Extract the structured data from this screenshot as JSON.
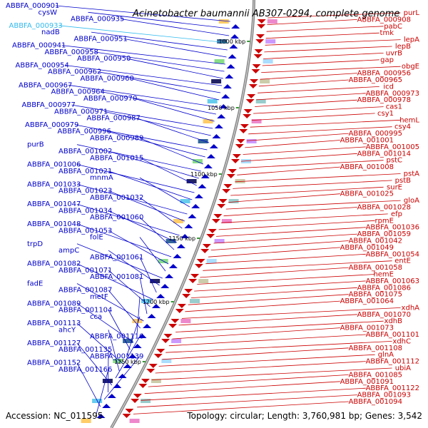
{
  "title": "Acinetobacter baumannii AB307-0294, complete genome",
  "accession": "Accession: NC_011595",
  "topology": "Topology: circular; Length: 3,760,981 bp; Genes: 3,542",
  "colors": {
    "minus_strand": "#0000cc",
    "plus_strand": "#cc0000",
    "highlight": "#33bbee",
    "backbone": "#888888",
    "tick": "#339933"
  },
  "kbp_ticks": [
    "1000 kbp",
    "1050 kbp",
    "1100 kbp",
    "1150 kbp",
    "1200 kbp",
    "1250 kbp"
  ],
  "left_labels": [
    {
      "text": "ABBFA_000901",
      "color": "#0000cc"
    },
    {
      "text": "cysW",
      "color": "#0000cc"
    },
    {
      "text": "ABBFA_000935",
      "color": "#0000cc"
    },
    {
      "text": "ABBFA_000933",
      "color": "#33bbee"
    },
    {
      "text": "nadB",
      "color": "#0000cc"
    },
    {
      "text": "ABBFA_000951",
      "color": "#0000cc"
    },
    {
      "text": "ABBFA_000941",
      "color": "#0000cc"
    },
    {
      "text": "ABBFA_000958",
      "color": "#0000cc"
    },
    {
      "text": "ABBFA_000950",
      "color": "#0000cc"
    },
    {
      "text": "ABBFA_000954",
      "color": "#0000cc"
    },
    {
      "text": "ABBFA_000962",
      "color": "#0000cc"
    },
    {
      "text": "ABBFA_000960",
      "color": "#0000cc"
    },
    {
      "text": "ABBFA_000967",
      "color": "#0000cc"
    },
    {
      "text": "ABBFA_000964",
      "color": "#0000cc"
    },
    {
      "text": "ABBFA_000970",
      "color": "#0000cc"
    },
    {
      "text": "ABBFA_000977",
      "color": "#0000cc"
    },
    {
      "text": "ABBFA_000971",
      "color": "#0000cc"
    },
    {
      "text": "ABBFA_000987",
      "color": "#0000cc"
    },
    {
      "text": "ABBFA_000979",
      "color": "#0000cc"
    },
    {
      "text": "ABBFA_000996",
      "color": "#0000cc"
    },
    {
      "text": "ABBFA_000989",
      "color": "#0000cc"
    },
    {
      "text": "purB",
      "color": "#0000cc"
    },
    {
      "text": "ABBFA_001002",
      "color": "#0000cc"
    },
    {
      "text": "ABBFA_001015",
      "color": "#0000cc"
    },
    {
      "text": "ABBFA_001006",
      "color": "#0000cc"
    },
    {
      "text": "ABBFA_001021",
      "color": "#0000cc"
    },
    {
      "text": "mnmA",
      "color": "#0000cc"
    },
    {
      "text": "ABBFA_001033",
      "color": "#0000cc"
    },
    {
      "text": "ABBFA_001023",
      "color": "#0000cc"
    },
    {
      "text": "ABBFA_001032",
      "color": "#0000cc"
    },
    {
      "text": "ABBFA_001047",
      "color": "#0000cc"
    },
    {
      "text": "ABBFA_001034",
      "color": "#0000cc"
    },
    {
      "text": "ABBFA_001060",
      "color": "#0000cc"
    },
    {
      "text": "ABBFA_001048",
      "color": "#0000cc"
    },
    {
      "text": "ABBFA_001053",
      "color": "#0000cc"
    },
    {
      "text": "folE",
      "color": "#0000cc"
    },
    {
      "text": "trpD",
      "color": "#0000cc"
    },
    {
      "text": "ampC",
      "color": "#0000cc"
    },
    {
      "text": "ABBFA_001061",
      "color": "#0000cc"
    },
    {
      "text": "ABBFA_001082",
      "color": "#0000cc"
    },
    {
      "text": "ABBFA_001071",
      "color": "#0000cc"
    },
    {
      "text": "ABBFA_001081",
      "color": "#0000cc"
    },
    {
      "text": "fadE",
      "color": "#0000cc"
    },
    {
      "text": "ABBFA_001087",
      "color": "#0000cc"
    },
    {
      "text": "metF",
      "color": "#0000cc"
    },
    {
      "text": "ABBFA_001089",
      "color": "#0000cc"
    },
    {
      "text": "ABBFA_001104",
      "color": "#0000cc"
    },
    {
      "text": "cca",
      "color": "#0000cc"
    },
    {
      "text": "ABBFA_001113",
      "color": "#0000cc"
    },
    {
      "text": "ahcY",
      "color": "#0000cc"
    },
    {
      "text": "ABBFA_001116",
      "color": "#0000cc"
    },
    {
      "text": "ABBFA_001127",
      "color": "#0000cc"
    },
    {
      "text": "ABBFA_001135",
      "color": "#0000cc"
    },
    {
      "text": "ABBFA_001139",
      "color": "#0000cc"
    },
    {
      "text": "ABBFA_001152",
      "color": "#0000cc"
    },
    {
      "text": "ABBFA_001166",
      "color": "#0000cc"
    }
  ],
  "right_labels": [
    {
      "text": "purL"
    },
    {
      "text": "ABBFA_000908"
    },
    {
      "text": "pabC"
    },
    {
      "text": "tmk"
    },
    {
      "text": "lepA"
    },
    {
      "text": "lepB"
    },
    {
      "text": "uvrB"
    },
    {
      "text": "gap"
    },
    {
      "text": "obgE"
    },
    {
      "text": "ABBFA_000956"
    },
    {
      "text": "ABBFA_000965"
    },
    {
      "text": "icd"
    },
    {
      "text": "ABBFA_000973"
    },
    {
      "text": "ABBFA_000978"
    },
    {
      "text": "cas1"
    },
    {
      "text": "csy1"
    },
    {
      "text": "hemL"
    },
    {
      "text": "csy4"
    },
    {
      "text": "ABBFA_000995"
    },
    {
      "text": "ABBFA_001001"
    },
    {
      "text": "ABBFA_001005"
    },
    {
      "text": "ABBFA_001014"
    },
    {
      "text": "pstC"
    },
    {
      "text": "ABBFA_001008"
    },
    {
      "text": "pstA"
    },
    {
      "text": "pstB"
    },
    {
      "text": "surE"
    },
    {
      "text": "ABBFA_001025"
    },
    {
      "text": "gloA"
    },
    {
      "text": "ABBFA_001028"
    },
    {
      "text": "efp"
    },
    {
      "text": "rpmE"
    },
    {
      "text": "ABBFA_001036"
    },
    {
      "text": "ABBFA_001059"
    },
    {
      "text": "ABBFA_001042"
    },
    {
      "text": "ABBFA_001049"
    },
    {
      "text": "ABBFA_001054"
    },
    {
      "text": "entE"
    },
    {
      "text": "ABBFA_001058"
    },
    {
      "text": "hemE"
    },
    {
      "text": "ABBFA_001063"
    },
    {
      "text": "ABBFA_001086"
    },
    {
      "text": "ABBFA_001075"
    },
    {
      "text": "ABBFA_001064"
    },
    {
      "text": "xdhA"
    },
    {
      "text": "ABBFA_001070"
    },
    {
      "text": "xdhB"
    },
    {
      "text": "ABBFA_001073"
    },
    {
      "text": "ABBFA_001101"
    },
    {
      "text": "xdhC"
    },
    {
      "text": "ABBFA_001108"
    },
    {
      "text": "glnA"
    },
    {
      "text": "ABBFA_001112"
    },
    {
      "text": "ubiA"
    },
    {
      "text": "ABBFA_001085"
    },
    {
      "text": "ABBFA_001091"
    },
    {
      "text": "ABBFA_001122"
    },
    {
      "text": "ABBFA_001093"
    },
    {
      "text": "ABBFA_001094"
    }
  ]
}
